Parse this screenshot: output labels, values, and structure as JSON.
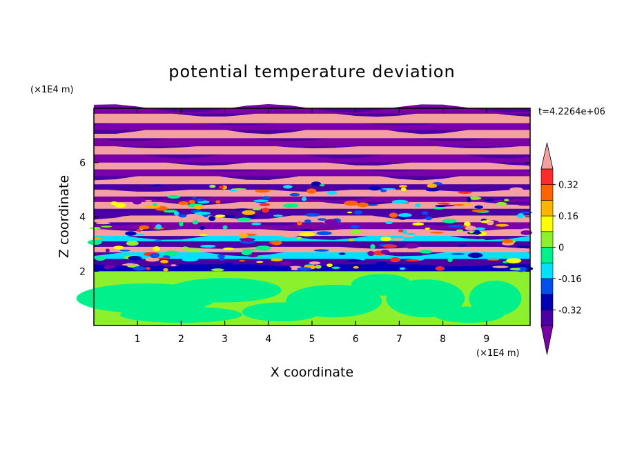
{
  "chart_data": {
    "type": "heatmap",
    "title": "potential temperature deviation",
    "xlabel": "X coordinate",
    "ylabel": "Z coordinate",
    "x_unit": "(×1E4 m)",
    "y_unit": "(×1E4 m)",
    "time_label": "t=4.2264e+06",
    "xlim": [
      0,
      10
    ],
    "ylim": [
      0,
      8
    ],
    "x_ticks": [
      "1",
      "2",
      "3",
      "4",
      "5",
      "6",
      "7",
      "8",
      "9"
    ],
    "y_ticks": [
      "2",
      "4",
      "6"
    ],
    "colorbar": {
      "levels": [
        -0.48,
        -0.4,
        -0.32,
        -0.24,
        -0.16,
        -0.08,
        0,
        0.08,
        0.16,
        0.24,
        0.32,
        0.4,
        0.48
      ],
      "colors": [
        "#7a00a8",
        "#4b00a3",
        "#0000b4",
        "#0050f0",
        "#00e0ff",
        "#00f08c",
        "#8cf02d",
        "#ffff00",
        "#ffb400",
        "#ff6400",
        "#ff2a2a",
        "#f5a0a0"
      ],
      "tick_labels": [
        "0.32",
        "0.16",
        "0",
        "-0.16",
        "-0.32"
      ]
    },
    "field_description": {
      "lower_layer_z_range": [
        0,
        2
      ],
      "lower_layer_values": [
        -0.08,
        0.08
      ],
      "upper_layer_pattern": "alternating horizontal bands of about -0.48 and 0.48 with small-scale eddies between z=2 and z=5"
    }
  }
}
